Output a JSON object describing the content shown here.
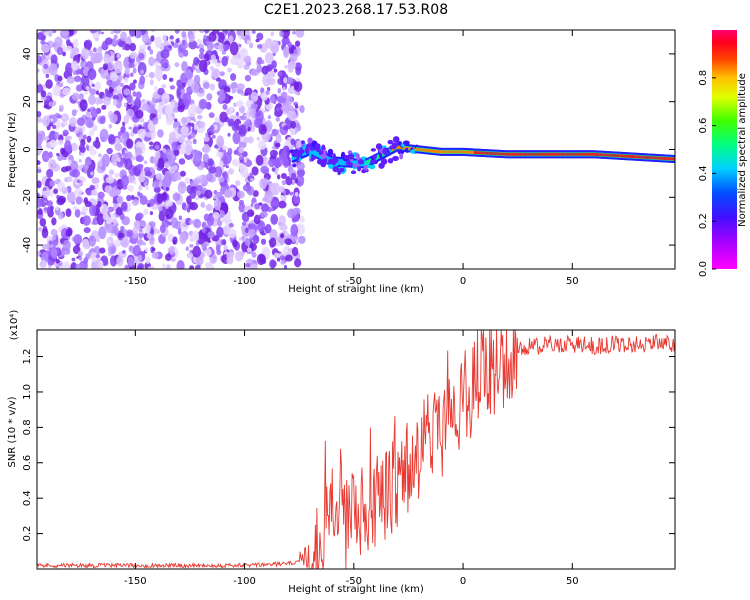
{
  "figure_title": "C2E1.2023.268.17.53.R08",
  "chart_data": [
    {
      "type": "heatmap",
      "title": "",
      "xlabel": "Height of straight line (km)",
      "ylabel": "Frequency (Hz)",
      "xlim": [
        -195,
        97
      ],
      "ylim": [
        -50,
        50
      ],
      "xticks": [
        -150,
        -100,
        -50,
        0,
        50
      ],
      "yticks": [
        -40,
        -20,
        0,
        20,
        40
      ],
      "colorbar": {
        "label": "Normalized spectral amplitude",
        "range": [
          0.0,
          1.0
        ],
        "ticks": [
          0.0,
          0.2,
          0.4,
          0.6,
          0.8
        ],
        "colormap": [
          "#ff00ff",
          "#9000ff",
          "#2020ff",
          "#00c8ff",
          "#00ff60",
          "#a0ff00",
          "#ffff00",
          "#ff8000",
          "#ff0000",
          "#ff0060"
        ]
      },
      "regions": [
        {
          "x_range": [
            -195,
            -78
          ],
          "frequency_range": [
            -50,
            50
          ],
          "amplitude": "low (0.05-0.25), broadband noise"
        },
        {
          "x_range": [
            -78,
            97
          ],
          "center_frequency_hz": [
            [
              -78,
              -3
            ],
            [
              -70,
              0
            ],
            [
              -60,
              -5
            ],
            [
              -45,
              -6
            ],
            [
              -30,
              1
            ],
            [
              -20,
              0
            ],
            [
              -10,
              -1
            ],
            [
              0,
              -1
            ],
            [
              20,
              -2
            ],
            [
              60,
              -2
            ],
            [
              97,
              -4
            ]
          ],
          "amplitude": "narrowband line, rising to ~0.9 above -30 km"
        }
      ],
      "background_colors": {
        "noise": "#a070f0",
        "line_peak": "#ff2020"
      }
    },
    {
      "type": "line",
      "title": "",
      "xlabel": "Height of straight line (km)",
      "ylabel": "SNR (10 * v/v)",
      "y_multiplier": "(x10⁴)",
      "xlim": [
        -195,
        97
      ],
      "ylim": [
        0,
        1.35
      ],
      "xticks": [
        -150,
        -100,
        -50,
        0,
        50
      ],
      "yticks": [
        0.2,
        0.4,
        0.6,
        0.8,
        1.0,
        1.2
      ],
      "line_color": "#e83a32",
      "series": [
        {
          "x": [
            -195,
            -150,
            -100,
            -80,
            -72,
            -68,
            -64,
            -62,
            -60,
            -58,
            -56,
            -54,
            -52,
            -50,
            -48,
            -46,
            -44,
            -42,
            -40,
            -38,
            -36,
            -34,
            -32,
            -30,
            -28,
            -26,
            -24,
            -22,
            -20,
            -18,
            -16,
            -14,
            -12,
            -10,
            -8,
            -6,
            -4,
            -2,
            0,
            2,
            4,
            6,
            8,
            10,
            12,
            14,
            16,
            18,
            20,
            22,
            24,
            26,
            30,
            35,
            40,
            50,
            60,
            70,
            80,
            90,
            97
          ],
          "y": [
            0.02,
            0.02,
            0.02,
            0.03,
            0.05,
            0.1,
            0.22,
            0.4,
            0.55,
            0.3,
            0.45,
            0.2,
            0.35,
            0.3,
            0.4,
            0.28,
            0.38,
            0.3,
            0.4,
            0.35,
            0.42,
            0.38,
            0.48,
            0.42,
            0.55,
            0.6,
            0.52,
            0.65,
            0.6,
            0.7,
            0.75,
            0.7,
            0.82,
            0.78,
            0.86,
            0.9,
            0.85,
            0.95,
            0.88,
            1.02,
            1.0,
            1.08,
            1.1,
            1.06,
            1.14,
            1.1,
            1.15,
            1.16,
            1.18,
            1.2,
            1.22,
            1.24,
            1.26,
            1.26,
            1.27,
            1.27,
            1.26,
            1.27,
            1.27,
            1.28,
            1.27
          ]
        }
      ]
    }
  ]
}
